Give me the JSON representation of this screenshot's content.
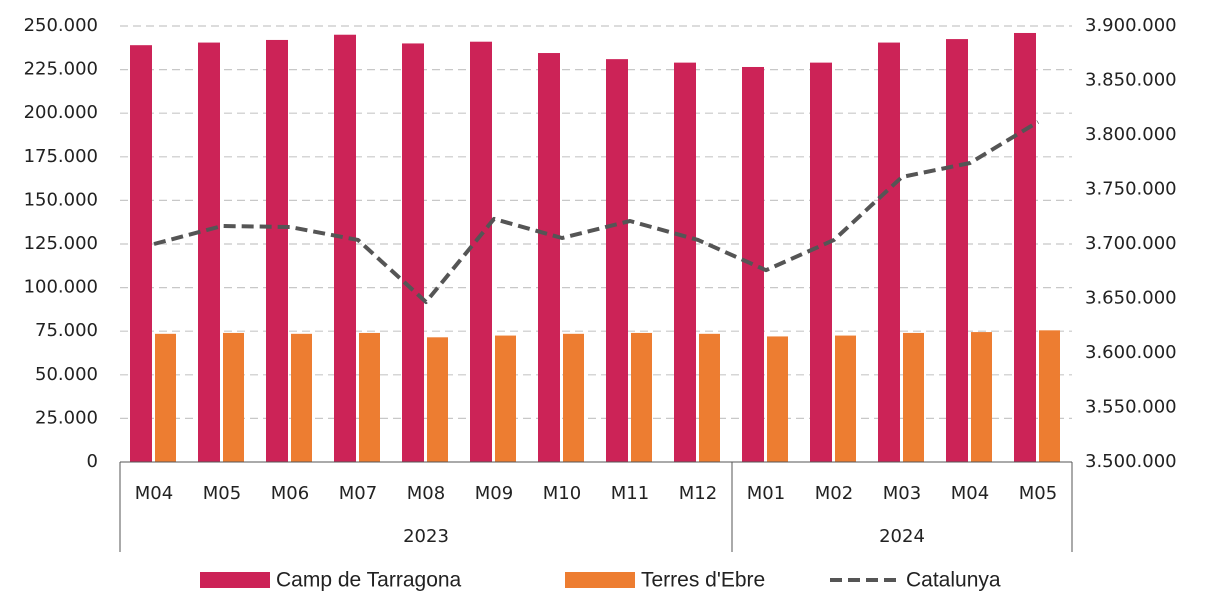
{
  "chart_data": {
    "type": "bar-line",
    "category_groups": [
      {
        "name": "2023",
        "categories": [
          "M04",
          "M05",
          "M06",
          "M07",
          "M08",
          "M09",
          "M10",
          "M11",
          "M12"
        ]
      },
      {
        "name": "2024",
        "categories": [
          "M01",
          "M02",
          "M03",
          "M04",
          "M05"
        ]
      }
    ],
    "series": [
      {
        "name": "Camp de Tarragona",
        "type": "bar",
        "color": "#cc2357",
        "values": [
          239000,
          240500,
          242000,
          245000,
          240000,
          241000,
          234500,
          231000,
          229000,
          226500,
          229000,
          240500,
          242500,
          246000
        ]
      },
      {
        "name": "Terres d'Ebre",
        "type": "bar",
        "color": "#ed7d31",
        "values": [
          73500,
          74000,
          73500,
          74000,
          71500,
          72500,
          73500,
          74000,
          73500,
          72000,
          72500,
          74000,
          74500,
          75500
        ]
      },
      {
        "name": "Catalunya",
        "type": "line",
        "axis": "y2",
        "color": "#555555",
        "dashed": true,
        "values": [
          3700000,
          3716500,
          3715600,
          3703700,
          3646800,
          3723000,
          3705500,
          3721100,
          3703700,
          3676000,
          3703700,
          3761500,
          3774300,
          3812000
        ]
      }
    ],
    "ylim": [
      0,
      250000
    ],
    "yticks": [
      0,
      {
        "value": 25000,
        "label": "25.000"
      },
      {
        "value": 50000,
        "label": "50.000"
      },
      {
        "value": 75000,
        "label": "75.000"
      },
      {
        "value": 100000,
        "label": "100.000"
      },
      {
        "value": 125000,
        "label": "125.000"
      },
      {
        "value": 150000,
        "label": "150.000"
      },
      {
        "value": 175000,
        "label": "175.000"
      },
      {
        "value": 200000,
        "label": "200.000"
      },
      {
        "value": 225000,
        "label": "225.000"
      },
      {
        "value": 250000,
        "label": "250.000"
      }
    ],
    "y2lim": [
      3500000,
      3900000
    ],
    "y2ticks": [
      {
        "value": 3500000,
        "label": "3.500.000"
      },
      {
        "value": 3550000,
        "label": "3.550.000"
      },
      {
        "value": 3600000,
        "label": "3.600.000"
      },
      {
        "value": 3650000,
        "label": "3.650.000"
      },
      {
        "value": 3700000,
        "label": "3.700.000"
      },
      {
        "value": 3750000,
        "label": "3.750.000"
      },
      {
        "value": 3800000,
        "label": "3.800.000"
      },
      {
        "value": 3850000,
        "label": "3.850.000"
      },
      {
        "value": 3900000,
        "label": "3.900.000"
      }
    ],
    "grid": true,
    "legend": "bottom"
  }
}
